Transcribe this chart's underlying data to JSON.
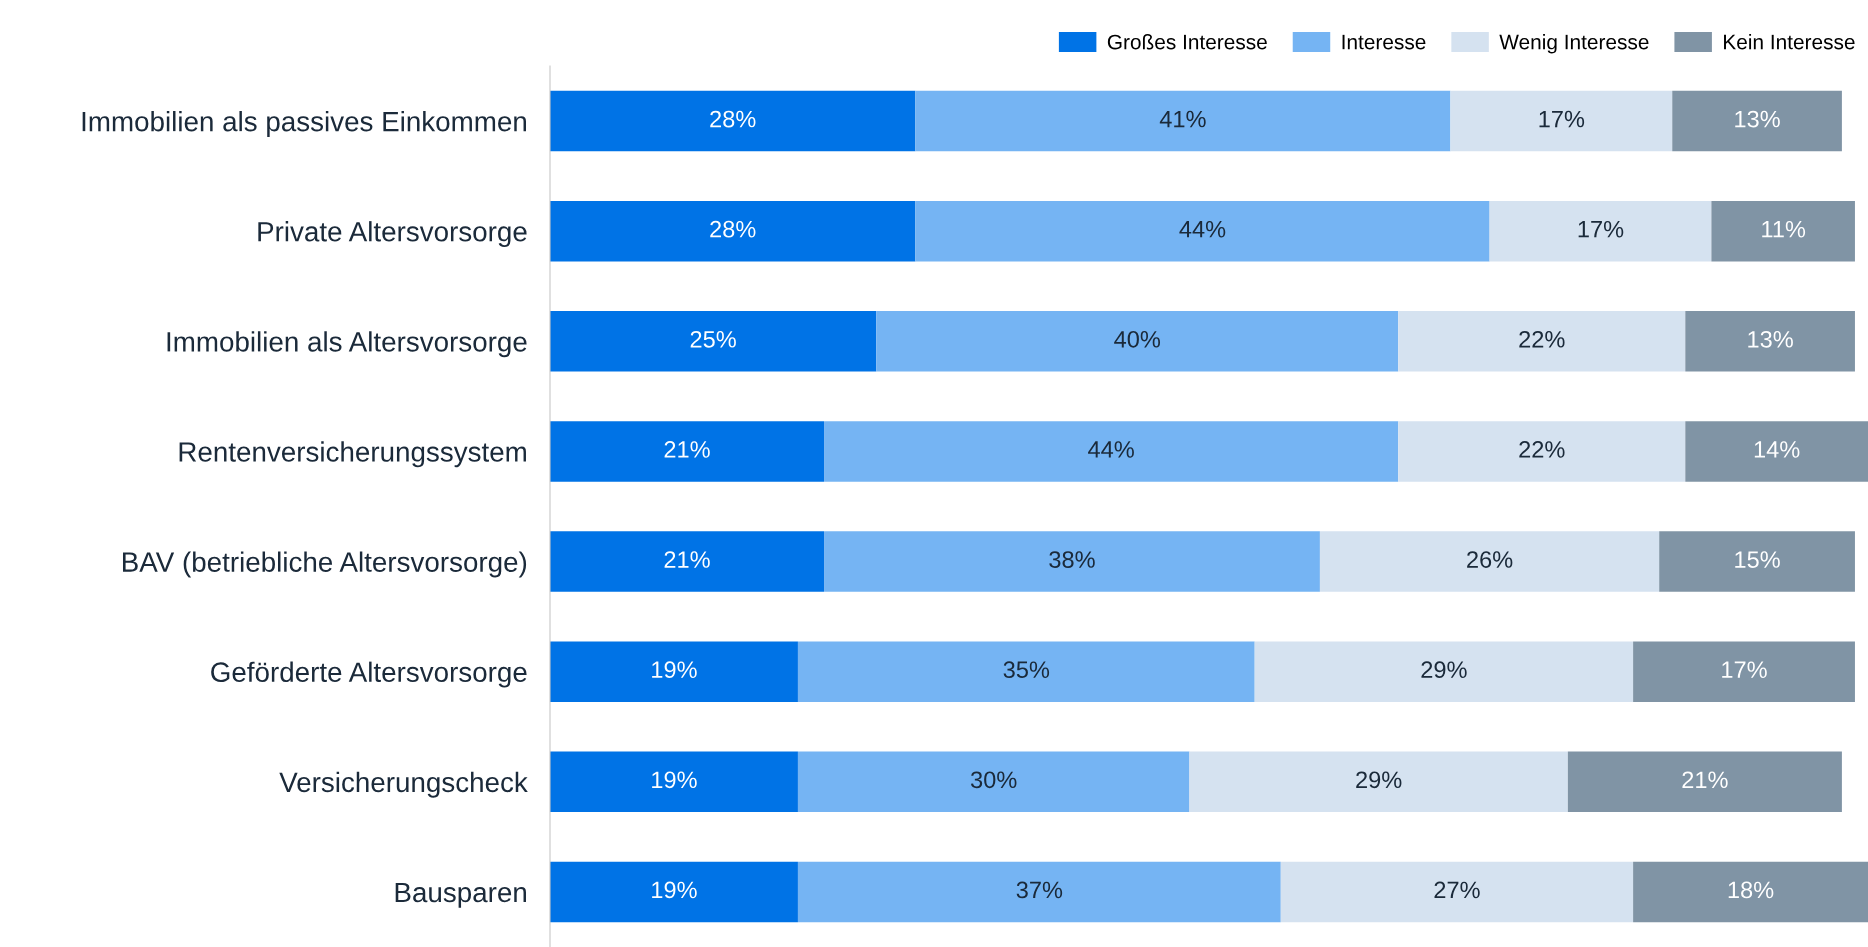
{
  "chart_data": {
    "type": "bar",
    "orientation": "horizontal",
    "stacked": true,
    "categories": [
      "Immobilien als passives Einkommen",
      "Private Altersvorsorge",
      "Immobilien als Altersvorsorge",
      "Rentenversicherungssystem",
      "BAV (betriebliche Altersvorsorge)",
      "Geförderte Altersvorsorge",
      "Versicherungscheck",
      "Bausparen"
    ],
    "series": [
      {
        "name": "Großes Interesse",
        "color": "#0073e6",
        "values": [
          28,
          28,
          25,
          21,
          21,
          19,
          19,
          19
        ],
        "value_labels": [
          "28%",
          "28%",
          "25%",
          "21%",
          "21%",
          "19%",
          "19%",
          "19%"
        ]
      },
      {
        "name": "Interesse",
        "color": "#75b4f3",
        "values": [
          41,
          44,
          40,
          44,
          38,
          35,
          30,
          37
        ],
        "value_labels": [
          "41%",
          "44%",
          "40%",
          "44%",
          "38%",
          "35%",
          "30%",
          "37%"
        ]
      },
      {
        "name": "Wenig Interesse",
        "color": "#d5e2f0",
        "values": [
          17,
          17,
          22,
          22,
          26,
          29,
          29,
          27
        ],
        "value_labels": [
          "17%",
          "17%",
          "22%",
          "22%",
          "26%",
          "29%",
          "29%",
          "27%"
        ]
      },
      {
        "name": "Kein Interesse",
        "color": "#8094a5",
        "values": [
          13,
          11,
          13,
          14,
          15,
          17,
          21,
          18
        ],
        "value_labels": [
          "13%",
          "11%",
          "13%",
          "14%",
          "15%",
          "17%",
          "21%",
          "18%"
        ]
      }
    ],
    "xlim": [
      0,
      101
    ],
    "tick_labels": "y",
    "grid": false,
    "legend": "top right"
  }
}
